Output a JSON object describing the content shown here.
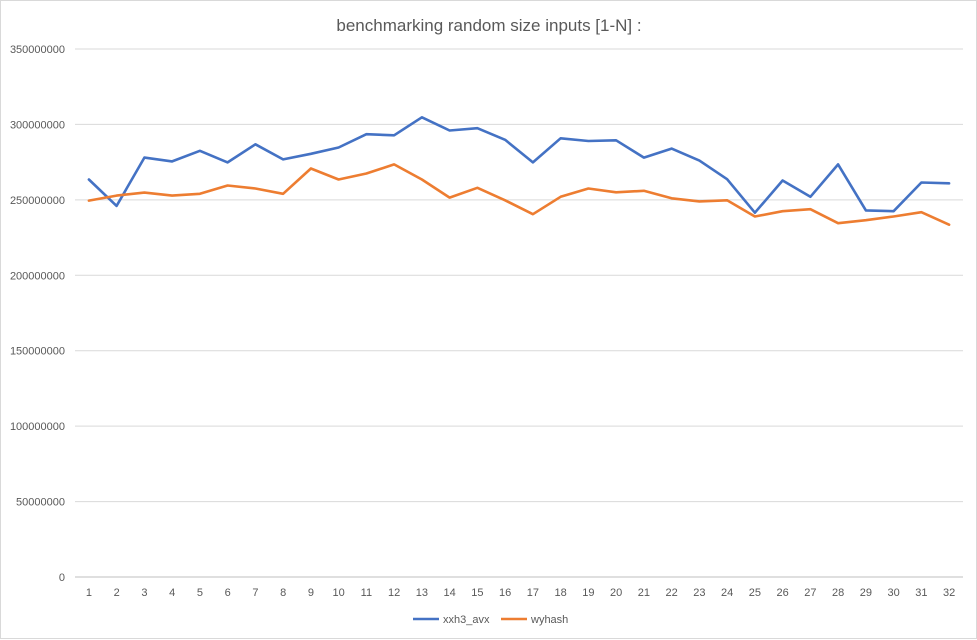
{
  "chart_data": {
    "type": "line",
    "title": "benchmarking random size inputs [1-N] :",
    "x": [
      "1",
      "2",
      "3",
      "4",
      "5",
      "6",
      "7",
      "8",
      "9",
      "10",
      "11",
      "12",
      "13",
      "14",
      "15",
      "16",
      "17",
      "18",
      "19",
      "20",
      "21",
      "22",
      "23",
      "24",
      "25",
      "26",
      "27",
      "28",
      "29",
      "30",
      "31",
      "32"
    ],
    "ylim": [
      0,
      350000000
    ],
    "yticks": [
      "0",
      "50000000",
      "100000000",
      "150000000",
      "200000000",
      "250000000",
      "300000000",
      "350000000"
    ],
    "grid": true,
    "legend_position": "bottom",
    "series": [
      {
        "name": "xxh3_avx",
        "color": "#4472c4",
        "values": [
          263500000,
          246000000,
          278000000,
          275500000,
          282500000,
          274800000,
          286800000,
          276800000,
          280500000,
          284700000,
          293500000,
          292800000,
          304700000,
          296000000,
          297500000,
          289800000,
          274800000,
          290800000,
          289000000,
          289500000,
          278000000,
          284000000,
          276000000,
          263700000,
          241500000,
          262800000,
          252000000,
          273500000,
          243000000,
          242500000,
          261500000,
          261000000
        ]
      },
      {
        "name": "wyhash",
        "color": "#ed7d31",
        "values": [
          249500000,
          252800000,
          254800000,
          252800000,
          254000000,
          259500000,
          257500000,
          254000000,
          270800000,
          263500000,
          267500000,
          273500000,
          263500000,
          251500000,
          258000000,
          249700000,
          240500000,
          252000000,
          257500000,
          255000000,
          256000000,
          251000000,
          249000000,
          249700000,
          239000000,
          242500000,
          243800000,
          234500000,
          236500000,
          239000000,
          241800000,
          233500000
        ]
      }
    ]
  }
}
